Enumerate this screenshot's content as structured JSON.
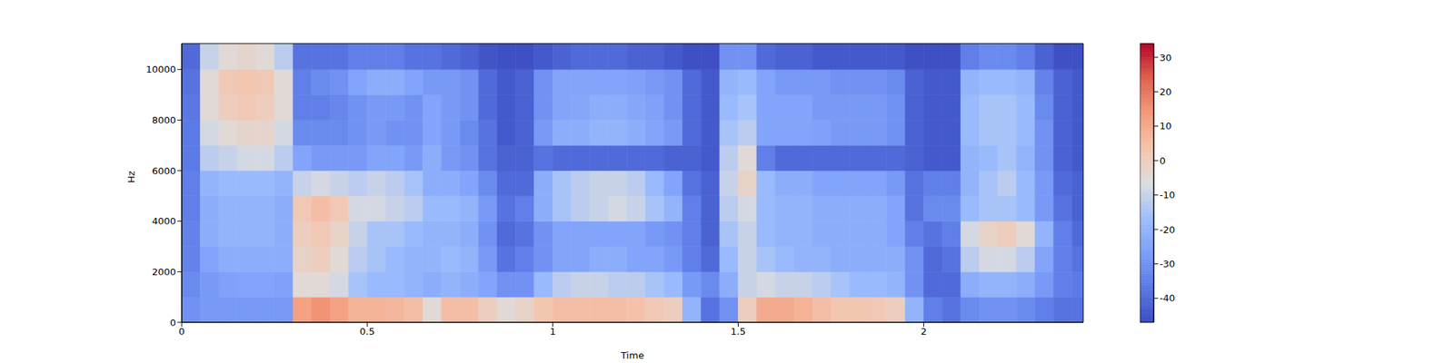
{
  "chart_data": {
    "type": "heatmap",
    "x_label": "Time",
    "y_label": "Hz",
    "xlim": [
      0,
      2.43
    ],
    "ylim": [
      0,
      11025
    ],
    "xticks": [
      0,
      0.5,
      1,
      1.5,
      2
    ],
    "yticks": [
      0,
      2000,
      4000,
      6000,
      8000,
      10000
    ],
    "x_edges": [
      0,
      0.05,
      0.1,
      0.15,
      0.2,
      0.25,
      0.3,
      0.35,
      0.4,
      0.45,
      0.5,
      0.55,
      0.6,
      0.65,
      0.7,
      0.75,
      0.8,
      0.85,
      0.9,
      0.95,
      1,
      1.05,
      1.1,
      1.15,
      1.2,
      1.25,
      1.3,
      1.35,
      1.4,
      1.45,
      1.5,
      1.55,
      1.6,
      1.65,
      1.7,
      1.75,
      1.8,
      1.85,
      1.9,
      1.95,
      2,
      2.05,
      2.1,
      2.15,
      2.2,
      2.25,
      2.3,
      2.35,
      2.4,
      2.45
    ],
    "y_edges": [
      0,
      1000,
      2000,
      3000,
      4000,
      5000,
      6000,
      7000,
      8000,
      9000,
      10000,
      11025
    ],
    "cells": [
      [
        -30,
        -28,
        -28,
        -28,
        -28,
        -28,
        12,
        15,
        12,
        8,
        8,
        7,
        5,
        -5,
        5,
        5,
        0,
        -5,
        -2,
        3,
        5,
        5,
        5,
        5,
        4,
        2,
        0,
        -20,
        -38,
        -30,
        0,
        10,
        10,
        8,
        5,
        3,
        3,
        2,
        0,
        -20,
        -35,
        -38,
        -32,
        -30,
        -30,
        -32,
        -35,
        -38,
        -38
      ],
      [
        -32,
        -28,
        -26,
        -25,
        -25,
        -26,
        -5,
        -5,
        -8,
        -15,
        -18,
        -18,
        -20,
        -22,
        -20,
        -22,
        -25,
        -30,
        -30,
        -18,
        -12,
        -10,
        -10,
        -12,
        -12,
        -15,
        -18,
        -28,
        -32,
        -22,
        -10,
        -8,
        -10,
        -10,
        -12,
        -15,
        -18,
        -18,
        -20,
        -30,
        -40,
        -40,
        -22,
        -20,
        -20,
        -22,
        -28,
        -35,
        -36
      ],
      [
        -34,
        -25,
        -22,
        -22,
        -22,
        -22,
        -2,
        0,
        -5,
        -12,
        -15,
        -18,
        -20,
        -20,
        -18,
        -20,
        -28,
        -38,
        -35,
        -30,
        -25,
        -25,
        -22,
        -22,
        -25,
        -25,
        -28,
        -35,
        -40,
        -18,
        -10,
        -15,
        -18,
        -20,
        -20,
        -22,
        -22,
        -22,
        -22,
        -30,
        -40,
        -38,
        -12,
        -8,
        -8,
        -12,
        -25,
        -35,
        -38
      ],
      [
        -34,
        -22,
        -20,
        -20,
        -20,
        -22,
        0,
        2,
        -2,
        -10,
        -15,
        -15,
        -18,
        -20,
        -20,
        -22,
        -30,
        -40,
        -38,
        -30,
        -25,
        -25,
        -25,
        -25,
        -25,
        -28,
        -30,
        -35,
        -42,
        -15,
        -10,
        -18,
        -20,
        -20,
        -22,
        -22,
        -22,
        -22,
        -25,
        -35,
        -38,
        -35,
        -8,
        -2,
        0,
        -5,
        -20,
        -35,
        -40
      ],
      [
        -35,
        -22,
        -20,
        -20,
        -20,
        -22,
        2,
        5,
        2,
        -8,
        -8,
        -10,
        -12,
        -18,
        -18,
        -20,
        -28,
        -38,
        -35,
        -22,
        -15,
        -12,
        -10,
        -8,
        -10,
        -15,
        -20,
        -35,
        -42,
        -12,
        -8,
        -18,
        -20,
        -20,
        -22,
        -22,
        -22,
        -22,
        -25,
        -38,
        -32,
        -32,
        -18,
        -15,
        -15,
        -18,
        -28,
        -38,
        -42
      ],
      [
        -35,
        -20,
        -18,
        -18,
        -18,
        -20,
        -10,
        -8,
        -10,
        -12,
        -10,
        -12,
        -15,
        -22,
        -22,
        -25,
        -32,
        -40,
        -40,
        -22,
        -15,
        -12,
        -10,
        -10,
        -12,
        -18,
        -25,
        -38,
        -42,
        -10,
        -2,
        -18,
        -22,
        -22,
        -25,
        -25,
        -25,
        -25,
        -28,
        -38,
        -35,
        -35,
        -20,
        -15,
        -12,
        -18,
        -28,
        -40,
        -42
      ],
      [
        -36,
        -12,
        -10,
        -8,
        -8,
        -12,
        -25,
        -28,
        -28,
        -28,
        -25,
        -25,
        -28,
        -22,
        -28,
        -30,
        -38,
        -42,
        -42,
        -38,
        -40,
        -40,
        -40,
        -40,
        -40,
        -40,
        -42,
        -42,
        -44,
        -12,
        -5,
        -35,
        -40,
        -40,
        -40,
        -40,
        -40,
        -40,
        -40,
        -42,
        -44,
        -44,
        -20,
        -18,
        -15,
        -20,
        -30,
        -42,
        -44
      ],
      [
        -36,
        -8,
        -5,
        -3,
        -3,
        -8,
        -32,
        -32,
        -32,
        -30,
        -28,
        -30,
        -30,
        -25,
        -28,
        -32,
        -38,
        -44,
        -42,
        -28,
        -22,
        -22,
        -20,
        -20,
        -22,
        -25,
        -28,
        -40,
        -44,
        -15,
        -12,
        -25,
        -25,
        -25,
        -26,
        -28,
        -28,
        -28,
        -30,
        -42,
        -44,
        -44,
        -18,
        -15,
        -15,
        -18,
        -30,
        -42,
        -44
      ],
      [
        -37,
        -5,
        0,
        2,
        0,
        -5,
        -35,
        -35,
        -33,
        -30,
        -28,
        -28,
        -30,
        -25,
        -28,
        -30,
        -40,
        -44,
        -42,
        -30,
        -25,
        -24,
        -22,
        -22,
        -24,
        -26,
        -30,
        -40,
        -44,
        -18,
        -15,
        -25,
        -25,
        -25,
        -28,
        -28,
        -28,
        -28,
        -30,
        -42,
        -44,
        -44,
        -18,
        -15,
        -15,
        -18,
        -32,
        -42,
        -44
      ],
      [
        -38,
        -5,
        2,
        3,
        2,
        -5,
        -35,
        -32,
        -30,
        -25,
        -22,
        -22,
        -25,
        -28,
        -28,
        -30,
        -40,
        -44,
        -42,
        -30,
        -25,
        -25,
        -25,
        -25,
        -26,
        -28,
        -30,
        -40,
        -44,
        -20,
        -18,
        -25,
        -28,
        -28,
        -28,
        -30,
        -30,
        -30,
        -32,
        -42,
        -44,
        -44,
        -20,
        -18,
        -18,
        -20,
        -34,
        -42,
        -44
      ],
      [
        -40,
        -10,
        -5,
        -3,
        -5,
        -12,
        -38,
        -38,
        -38,
        -35,
        -35,
        -35,
        -38,
        -38,
        -40,
        -42,
        -45,
        -46,
        -46,
        -44,
        -42,
        -40,
        -40,
        -40,
        -42,
        -42,
        -44,
        -46,
        -46,
        -30,
        -30,
        -40,
        -42,
        -42,
        -44,
        -44,
        -44,
        -44,
        -44,
        -46,
        -46,
        -46,
        -35,
        -32,
        -32,
        -35,
        -42,
        -46,
        -46
      ]
    ],
    "colorbar": {
      "range": [
        -47,
        34
      ],
      "ticks": [
        -40,
        -30,
        -20,
        -10,
        0,
        10,
        20,
        30
      ]
    }
  }
}
